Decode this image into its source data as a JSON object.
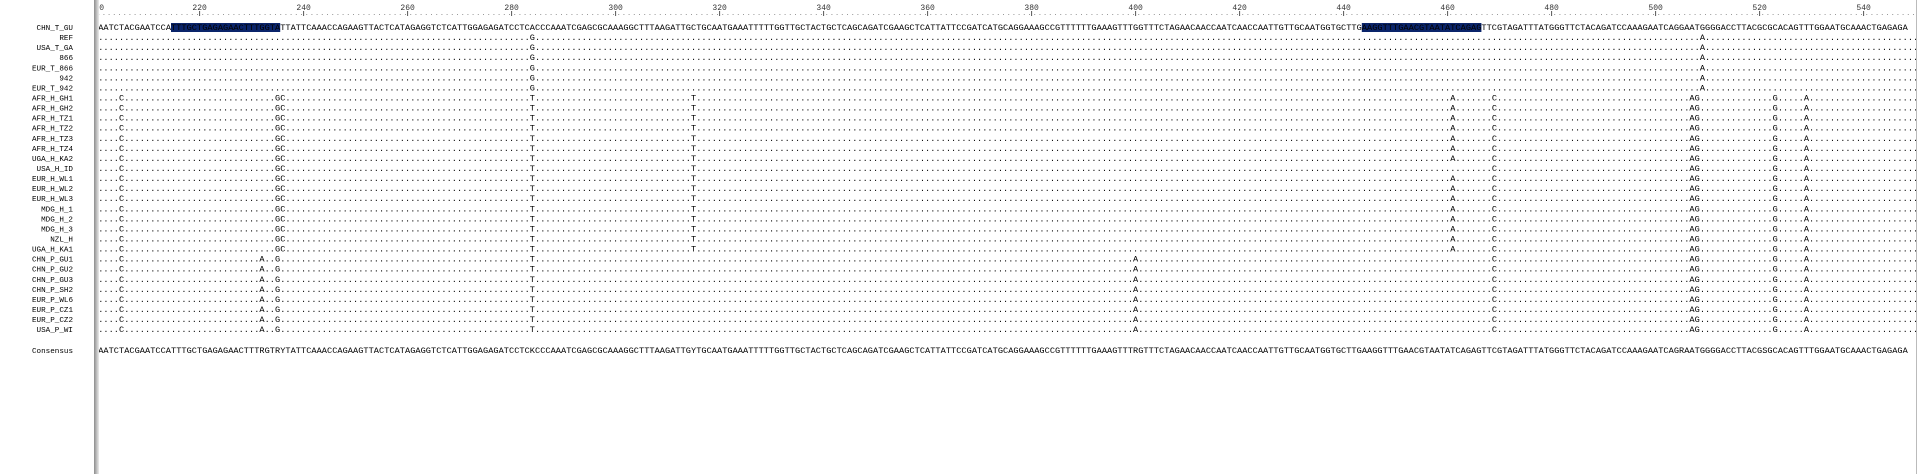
{
  "ruler": {
    "ticks": [
      {
        "value": 200,
        "label": "0"
      },
      220,
      240,
      260,
      280,
      300,
      320,
      340,
      360,
      380,
      400,
      420,
      440,
      460,
      480,
      500,
      520,
      540
    ],
    "start": 200
  },
  "rows": [
    {
      "name": "CHN_T_GU",
      "segments": [
        {
          "text": "AAATCTACGAATCCA",
          "selected": false
        },
        {
          "text": "TTTGCTGAGAGAACTTTGGTA",
          "selected": true
        },
        {
          "text": "TTATTCAAACCAGAAGTTACTCATAGAGGTCTCATTGGAGAGATCCTCACCCAAATCGAGCGCAAAGGCTTTAAGATTGCTGCAATGAAATTTTTGGTTGCTACTGCTCAGCAGATCGAAGCTCATTATTCCGATCATGCAGGAAAGCCGTTTTTTGAAAGTTTGGTTTCTAGAACAACCAATCAACCAATTGTTGCAATGGTGCTTG",
          "selected": false
        },
        {
          "text": "AAGGTTTGAACGTAATATCAGAG",
          "selected": true
        },
        {
          "text": "TTCGTAGATTTATGGGTTCTACAGATCCAAAGAATCAGGAATGGGGACCTTACGCGCACAGTTTGGAATGCAAACTGAGAGA",
          "selected": false
        }
      ]
    },
    {
      "name": "REF",
      "sequence": "....................................................................................G................................................................................................................................................................................................................................A..........................................."
    },
    {
      "name": "USA_T_GA",
      "sequence": "....................................................................................G................................................................................................................................................................................................................................A..........................................."
    },
    {
      "name": "866",
      "sequence": "....................................................................................G................................................................................................................................................................................................................................A..........................................."
    },
    {
      "name": "EUR_T_866",
      "sequence": "....................................................................................G................................................................................................................................................................................................................................A..........................................."
    },
    {
      "name": "942",
      "sequence": "....................................................................................G................................................................................................................................................................................................................................A..........................................."
    },
    {
      "name": "EUR_T_942",
      "sequence": "....................................................................................G................................................................................................................................................................................................................................A..........................................."
    },
    {
      "name": "AFR_H_GH1",
      "sequence": ".....C.............................GC...............................................T..............................T.................................................................................................................................................A.......C.....................................AG..............G.....A....................."
    },
    {
      "name": "AFR_H_GH2",
      "sequence": ".....C.............................GC...............................................T..............................T.................................................................................................................................................A.......C.....................................AG..............G.....A....................."
    },
    {
      "name": "AFR_H_TZ1",
      "sequence": ".....C.............................GC...............................................T..............................T.................................................................................................................................................A.......C.....................................AG..............G.....A....................."
    },
    {
      "name": "AFR_H_TZ2",
      "sequence": ".....C.............................GC...............................................T..............................T.................................................................................................................................................A.......C.....................................AG..............G.....A....................."
    },
    {
      "name": "AFR_H_TZ3",
      "sequence": ".....C.............................GC...............................................T..............................T.................................................................................................................................................A.......C.....................................AG..............G.....A....................."
    },
    {
      "name": "AFR_H_TZ4",
      "sequence": ".....C.............................GC...............................................T..............................T.................................................................................................................................................A.......C.....................................AG..............G.....A....................."
    },
    {
      "name": "UGA_H_KA2",
      "sequence": ".....C.............................GC...............................................T..............................T.................................................................................................................................................A.......C.....................................AG..............G.....A....................."
    },
    {
      "name": "USA_H_ID",
      "sequence": ".....C.............................GC...............................................T..............................T.........................................................................................................................................................C.....................................AG..............G.....A....................."
    },
    {
      "name": "EUR_H_WL1",
      "sequence": ".....C.............................GC...............................................T..............................T.................................................................................................................................................A.......C.....................................AG..............G.....A....................."
    },
    {
      "name": "EUR_H_WL2",
      "sequence": ".....C.............................GC...............................................T..............................T.................................................................................................................................................A.......C.....................................AG..............G.....A....................."
    },
    {
      "name": "EUR_H_WL3",
      "sequence": ".....C.............................GC...............................................T..............................T.................................................................................................................................................A.......C.....................................AG..............G.....A....................."
    },
    {
      "name": "MDG_H_1",
      "sequence": ".....C.............................GC...............................................T..............................T.................................................................................................................................................A.......C.....................................AG..............G.....A....................."
    },
    {
      "name": "MDG_H_2",
      "sequence": ".....C.............................GC...............................................T..............................T.................................................................................................................................................A.......C.....................................AG..............G.....A....................."
    },
    {
      "name": "MDG_H_3",
      "sequence": ".....C.............................GC...............................................T..............................T.................................................................................................................................................A.......C.....................................AG..............G.....A....................."
    },
    {
      "name": "NZL_H",
      "sequence": ".....C.............................GC...............................................T..............................T.................................................................................................................................................A.......C.....................................AG..............G.....A....................."
    },
    {
      "name": "UGA_H_KA1",
      "sequence": ".....C.............................GC...............................................T..............................T.................................................................................................................................................A.......C.....................................AG..............G.....A....................."
    },
    {
      "name": "CHN_P_GU1",
      "sequence": ".....C..........................A..G................................................T...................................................................................................................A....................................................................C.....................................AG..............G.....A....................."
    },
    {
      "name": "CHN_P_GU2",
      "sequence": ".....C..........................A..G................................................T...................................................................................................................A....................................................................C.....................................AG..............G.....A....................."
    },
    {
      "name": "CHN_P_GU3",
      "sequence": ".....C..........................A..G................................................T...................................................................................................................A....................................................................C.....................................AG..............G.....A....................."
    },
    {
      "name": "CHN_P_SH2",
      "sequence": ".....C..........................A..G................................................T...................................................................................................................A....................................................................C.....................................AG..............G.....A....................."
    },
    {
      "name": "EUR_P_WL6",
      "sequence": ".....C..........................A..G................................................T...................................................................................................................A....................................................................C.....................................AG..............G.....A....................."
    },
    {
      "name": "EUR_P_CZ1",
      "sequence": ".....C..........................A..G................................................T...................................................................................................................A....................................................................C.....................................AG..............G.....A....................."
    },
    {
      "name": "EUR_P_CZ2",
      "sequence": ".....C..........................A..G................................................T...................................................................................................................A....................................................................C.....................................AG..............G.....A....................."
    },
    {
      "name": "USA_P_WI",
      "sequence": ".....C..........................A..G................................................T...................................................................................................................A....................................................................C.....................................AG..............G.....A....................."
    }
  ],
  "consensus": {
    "label": "Consensus",
    "sequence": "AAATCTACGAATCCATTTGCTGAGAGAACTTTRGTRYTATTCAAACCAGAAGTTACTCATAGAGGTCTCATTGGAGAGATCCTCKCCCAAATCGAGCGCAAAGGCTTTAAGATTGYTGCAATGAAATTTTTGGTTGCTACTGCTCAGCAGATCGAAGCTCATTATTCCGATCATGCAGGAAAGCCGTTTTTTGAAAGTTTRGTTTCTAGAACAACCAATCAACCAATTGTTGCAATGGTGCTTGAAGGTTTGAACGTAATATCAGAGTTCGTAGATTTATGGGTTCTACAGATCCAAAGAATCAGRAATGGGGACCTTACGSGCACAGTTTGGAATGCAAACTGAGAGA"
  }
}
